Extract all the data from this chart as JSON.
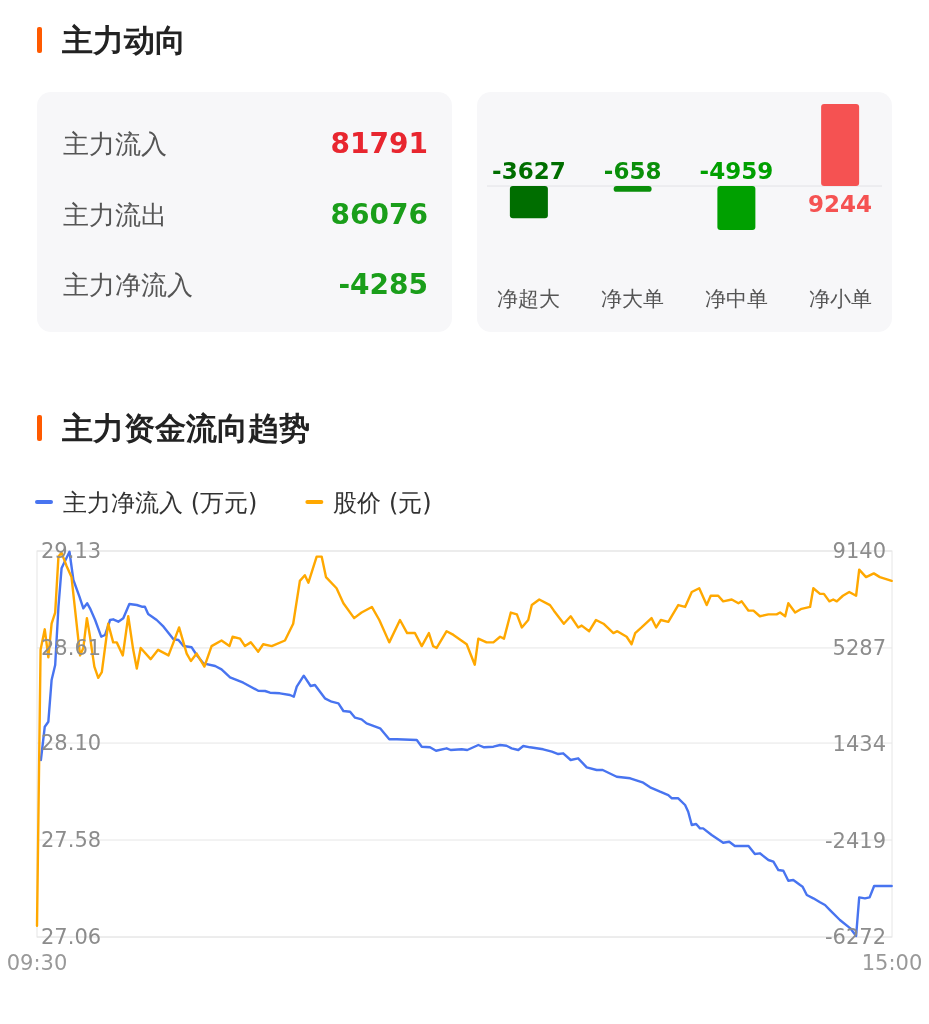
{
  "chart_data": [
    {
      "type": "other",
      "title": "主力动向",
      "categories": [
        "主力流入",
        "主力流出",
        "主力净流入"
      ],
      "values": [
        81791,
        86076,
        -4285
      ],
      "data_labels": true
    },
    {
      "type": "bar",
      "categories": [
        "净超大",
        "净大单",
        "净中单",
        "净小单"
      ],
      "values": [
        -3627,
        -658,
        -4959,
        9244
      ],
      "colors": [
        "#006e00",
        "#0a8f0a",
        "#00a000",
        "#f55252"
      ],
      "data_labels": true
    },
    {
      "type": "line",
      "title": "主力资金流向趋势",
      "xlim": [
        9.5,
        15
      ],
      "xticks": [
        {
          "value": 9.5,
          "label": "09:30"
        },
        {
          "value": 15,
          "label": "15:00"
        }
      ],
      "ylim": [
        27.06,
        29.13
      ],
      "yticks": [
        29.13,
        28.61,
        {
          "value": 28.1,
          "label": "28.10"
        },
        27.58,
        27.06
      ],
      "y2lim": [
        -6272,
        9140
      ],
      "y2ticks": [
        9140,
        5287,
        1434,
        -2419,
        -6272
      ],
      "grid": "y",
      "legend": "top left",
      "series": [
        {
          "name": "主力净流入 (万元)",
          "color": "#4874f0",
          "axis": "y2",
          "x": [
            9.525,
            9.55,
            9.573,
            9.594,
            9.617,
            9.638,
            9.658,
            9.709,
            9.734,
            9.773,
            9.798,
            9.823,
            9.841,
            9.874,
            9.913,
            9.938,
            9.97,
            9.99,
            10.023,
            10.055,
            10.094,
            10.142,
            10.174,
            10.194,
            10.215,
            10.27,
            10.314,
            10.378,
            10.41,
            10.442,
            10.495,
            10.527,
            10.57,
            10.646,
            10.687,
            10.742,
            10.827,
            10.923,
            10.967,
            10.999,
            11.063,
            11.127,
            11.152,
            11.171,
            11.216,
            11.26,
            11.288,
            11.352,
            11.395,
            11.439,
            11.471,
            11.514,
            11.546,
            11.588,
            11.62,
            11.707,
            11.766,
            11.815,
            11.943,
            11.975,
            12.028,
            12.067,
            12.135,
            12.161,
            12.232,
            12.268,
            12.339,
            12.376,
            12.436,
            12.479,
            12.52,
            12.553,
            12.596,
            12.628,
            12.672,
            12.756,
            12.812,
            12.853,
            12.885,
            12.933,
            12.981,
            13.036,
            13.1,
            13.139,
            13.229,
            13.316,
            13.4,
            13.444,
            13.508,
            13.561,
            13.584,
            13.625,
            13.669,
            13.689,
            13.712,
            13.74,
            13.765,
            13.785,
            13.84,
            13.914,
            13.953,
            13.989,
            14.077,
            14.118,
            14.15,
            14.205,
            14.237,
            14.269,
            14.301,
            14.333,
            14.365,
            14.409,
            14.425,
            14.452,
            14.494,
            14.537,
            14.569,
            14.601,
            14.665,
            14.732,
            14.769,
            14.789,
            14.826,
            14.856,
            14.885,
            14.998
          ],
          "values": [
            795,
            2124,
            2324,
            3989,
            4588,
            6916,
            8449,
            9110,
            7982,
            7315,
            6852,
            7052,
            6852,
            6385,
            5718,
            5786,
            6385,
            6413,
            6317,
            6453,
            7024,
            6984,
            6916,
            6916,
            6624,
            6385,
            6117,
            5614,
            5586,
            5347,
            5295,
            4987,
            4656,
            4548,
            4416,
            4097,
            3881,
            3562,
            3550,
            3482,
            3458,
            3390,
            3322,
            3722,
            4161,
            3749,
            3789,
            3258,
            3123,
            3059,
            2751,
            2723,
            2484,
            2420,
            2260,
            2060,
            1621,
            1621,
            1593,
            1326,
            1302,
            1166,
            1262,
            1194,
            1222,
            1194,
            1394,
            1302,
            1326,
            1394,
            1366,
            1262,
            1194,
            1354,
            1302,
            1222,
            1126,
            1034,
            1062,
            795,
            863,
            503,
            395,
            395,
            128,
            64,
            -112,
            -296,
            -471,
            -603,
            -735,
            -735,
            -1002,
            -1270,
            -1801,
            -1761,
            -1933,
            -1933,
            -2200,
            -2508,
            -2468,
            -2639,
            -2639,
            -2959,
            -2931,
            -3198,
            -3266,
            -3598,
            -3626,
            -4025,
            -3997,
            -4197,
            -4264,
            -4596,
            -4728,
            -4887,
            -4995,
            -5195,
            -5594,
            -5926,
            -6233,
            -4688,
            -4728,
            -4688,
            -4237,
            -4237
          ]
        },
        {
          "name": "股价 (元)",
          "color": "#ffa800",
          "x": [
            9.5,
            9.523,
            9.55,
            9.573,
            9.594,
            9.617,
            9.638,
            9.658,
            9.69,
            9.722,
            9.777,
            9.798,
            9.821,
            9.841,
            9.869,
            9.894,
            9.917,
            9.958,
            9.99,
            10.013,
            10.052,
            10.087,
            10.119,
            10.142,
            10.167,
            10.231,
            10.279,
            10.346,
            10.378,
            10.414,
            10.463,
            10.49,
            10.527,
            10.577,
            10.623,
            10.687,
            10.738,
            10.758,
            10.806,
            10.838,
            10.875,
            10.923,
            10.955,
            11.01,
            11.095,
            11.148,
            11.191,
            11.223,
            11.246,
            11.299,
            11.331,
            11.359,
            11.427,
            11.471,
            11.54,
            11.588,
            11.654,
            11.702,
            11.766,
            11.835,
            11.881,
            11.931,
            11.975,
            12.021,
            12.048,
            12.071,
            12.135,
            12.179,
            12.264,
            12.316,
            12.339,
            12.392,
            12.436,
            12.479,
            12.504,
            12.548,
            12.587,
            12.619,
            12.66,
            12.683,
            12.731,
            12.8,
            12.825,
            12.889,
            12.933,
            12.981,
            13.004,
            13.052,
            13.096,
            13.144,
            13.208,
            13.233,
            13.293,
            13.325,
            13.348,
            13.389,
            13.453,
            13.483,
            13.513,
            13.561,
            13.625,
            13.669,
            13.712,
            13.76,
            13.808,
            13.834,
            13.882,
            13.914,
            13.969,
            14.012,
            14.033,
            14.077,
            14.109,
            14.15,
            14.205,
            14.258,
            14.28,
            14.313,
            14.333,
            14.377,
            14.418,
            14.473,
            14.494,
            14.537,
            14.562,
            14.597,
            14.622,
            14.645,
            14.684,
            14.725,
            14.769,
            14.789,
            14.833,
            14.883,
            14.922,
            14.998
          ],
          "values": [
            27.12,
            28.6,
            28.71,
            28.56,
            28.74,
            28.8,
            29.1,
            29.12,
            29.05,
            28.99,
            28.57,
            28.61,
            28.77,
            28.67,
            28.51,
            28.45,
            28.48,
            28.74,
            28.64,
            28.64,
            28.57,
            28.78,
            28.6,
            28.5,
            28.61,
            28.55,
            28.6,
            28.57,
            28.64,
            28.72,
            28.58,
            28.54,
            28.58,
            28.51,
            28.62,
            28.65,
            28.62,
            28.67,
            28.66,
            28.62,
            28.64,
            28.59,
            28.63,
            28.62,
            28.65,
            28.74,
            28.97,
            29.0,
            28.96,
            29.1,
            29.1,
            28.99,
            28.93,
            28.85,
            28.77,
            28.8,
            28.83,
            28.76,
            28.64,
            28.76,
            28.69,
            28.69,
            28.62,
            28.69,
            28.62,
            28.61,
            28.7,
            28.68,
            28.63,
            28.52,
            28.66,
            28.64,
            28.64,
            28.67,
            28.66,
            28.8,
            28.79,
            28.72,
            28.76,
            28.84,
            28.87,
            28.84,
            28.81,
            28.74,
            28.78,
            28.72,
            28.73,
            28.7,
            28.76,
            28.74,
            28.69,
            28.7,
            28.67,
            28.63,
            28.69,
            28.72,
            28.77,
            28.72,
            28.76,
            28.75,
            28.84,
            28.83,
            28.91,
            28.93,
            28.84,
            28.89,
            28.89,
            28.86,
            28.87,
            28.85,
            28.86,
            28.81,
            28.81,
            28.78,
            28.79,
            28.79,
            28.8,
            28.78,
            28.85,
            28.8,
            28.82,
            28.83,
            28.93,
            28.9,
            28.9,
            28.86,
            28.87,
            28.86,
            28.89,
            28.91,
            28.89,
            29.03,
            28.99,
            29.01,
            28.99,
            28.97
          ]
        }
      ]
    }
  ]
}
